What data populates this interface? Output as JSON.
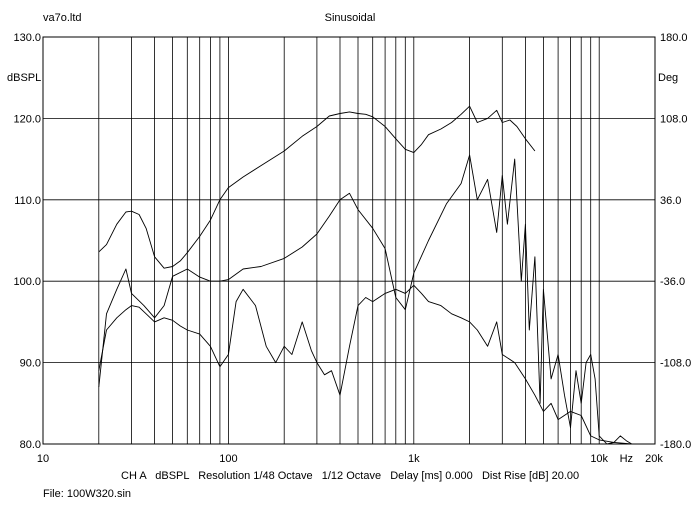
{
  "header": {
    "file_name_top": "va7o.ltd",
    "measurement_type": "Sinusoidal"
  },
  "footer": {
    "settings_line": "CH A   dBSPL   Resolution 1/48 Octave   1/12 Octave   Delay [ms] 0.000   Dist Rise [dB] 20.00",
    "file_line": "File: 100W320.sin"
  },
  "chart_data": {
    "type": "line",
    "x_scale": "log",
    "xlim": [
      10,
      20000
    ],
    "x_tick_labels": [
      {
        "value": 10,
        "label": "10"
      },
      {
        "value": 100,
        "label": "100"
      },
      {
        "value": 1000,
        "label": "1k"
      },
      {
        "value": 10000,
        "label": "10k"
      },
      {
        "value": 14000,
        "label": "Hz"
      },
      {
        "value": 20000,
        "label": "20k"
      }
    ],
    "x_gridlines": [
      20,
      30,
      40,
      50,
      60,
      70,
      80,
      90,
      100,
      200,
      300,
      400,
      500,
      600,
      700,
      800,
      900,
      1000,
      2000,
      3000,
      4000,
      5000,
      6000,
      7000,
      8000,
      9000,
      10000
    ],
    "ylabel": "dBSPL",
    "ylim": [
      80,
      130
    ],
    "y_ticks": [
      {
        "value": 80,
        "label": "80.0"
      },
      {
        "value": 90,
        "label": "90.0"
      },
      {
        "value": 100,
        "label": "100.0"
      },
      {
        "value": 110,
        "label": "110.0"
      },
      {
        "value": 120,
        "label": "120.0"
      },
      {
        "value": 130,
        "label": "130.0"
      }
    ],
    "y2label": "Deg",
    "y2lim": [
      -180,
      180
    ],
    "y2_ticks": [
      {
        "value": -180,
        "label": "-180.0"
      },
      {
        "value": -108,
        "label": "-108.0"
      },
      {
        "value": -36,
        "label": "-36.0"
      },
      {
        "value": 36,
        "label": "36.0"
      },
      {
        "value": 108,
        "label": "108.0"
      },
      {
        "value": 180,
        "label": "180.0"
      }
    ],
    "grid": true,
    "series": [
      {
        "x": [
          20,
          22,
          25,
          28,
          30,
          33,
          36,
          40,
          45,
          50,
          55,
          60,
          70,
          80,
          90,
          100,
          120,
          150,
          200,
          250,
          300,
          350,
          400,
          450,
          500,
          550,
          600,
          700,
          800,
          900,
          1000,
          1100,
          1200,
          1400,
          1600,
          1800,
          2000,
          2200,
          2500,
          2800,
          3000,
          3300,
          3600,
          4000,
          4500
        ],
        "y": [
          103.6,
          104.5,
          107,
          108.5,
          108.6,
          108.2,
          106.5,
          103,
          101.6,
          101.8,
          102.5,
          103.5,
          105.5,
          107.5,
          110,
          111.5,
          112.8,
          114.2,
          116,
          117.8,
          119,
          120.3,
          120.6,
          120.8,
          120.6,
          120.5,
          120.2,
          119,
          117.5,
          116.2,
          115.8,
          116.8,
          118,
          118.7,
          119.5,
          120.5,
          121.5,
          119.5,
          120,
          121,
          119.5,
          119.8,
          119,
          117.5,
          116
        ]
      },
      {
        "x": [
          20,
          22,
          25,
          28,
          30,
          35,
          40,
          45,
          50,
          60,
          70,
          80,
          90,
          100,
          120,
          150,
          200,
          250,
          300,
          350,
          400,
          450,
          500,
          600,
          700,
          800,
          900,
          1000,
          1200,
          1500,
          1800,
          2000,
          2200,
          2500,
          2800,
          3000,
          3200,
          3500,
          3800,
          4000,
          4200,
          4500,
          4800,
          5000,
          5500,
          6000,
          6500,
          7000,
          7500,
          8000,
          8500,
          9000,
          9500,
          10000,
          11000,
          12000,
          13000,
          14000,
          15000
        ],
        "y": [
          87,
          96,
          99,
          101.5,
          98.5,
          97,
          95.5,
          97,
          100.6,
          101.5,
          100.5,
          100,
          100,
          100.2,
          101.5,
          101.8,
          102.8,
          104.2,
          105.8,
          108,
          110,
          110.8,
          108.8,
          106.5,
          104,
          98,
          96.5,
          101,
          105,
          109.5,
          112,
          115.5,
          110,
          112.5,
          106,
          113,
          107,
          115,
          100,
          107,
          94,
          103,
          85,
          99,
          88,
          91,
          86,
          82,
          89,
          85,
          90,
          91,
          88,
          81,
          80,
          80.2,
          81,
          80.4,
          80
        ]
      },
      {
        "x": [
          20,
          22,
          25,
          28,
          30,
          33,
          36,
          40,
          45,
          50,
          55,
          60,
          70,
          80,
          90,
          100,
          110,
          120,
          140,
          160,
          180,
          200,
          220,
          250,
          280,
          300,
          330,
          360,
          400,
          450,
          500,
          550,
          600,
          700,
          800,
          900,
          1000,
          1100,
          1200,
          1400,
          1600,
          1800,
          2000,
          2200,
          2500,
          2800,
          3000,
          3500,
          4000,
          4500,
          5000,
          5500,
          6000,
          7000,
          8000,
          9000,
          10000,
          12000,
          15000
        ],
        "y": [
          89,
          94,
          95.5,
          96.5,
          97,
          96.8,
          96,
          95,
          95.5,
          95.2,
          94.5,
          94,
          93.5,
          92,
          89.5,
          91,
          97.5,
          99,
          97,
          92,
          90,
          92,
          91,
          95,
          91.5,
          90,
          88.5,
          89,
          86,
          92,
          97,
          98,
          97.5,
          98.5,
          99,
          98.5,
          99.5,
          98.5,
          97.5,
          97,
          96,
          95.5,
          95,
          94,
          92,
          95,
          91,
          90,
          88,
          86,
          84,
          85,
          83,
          84,
          83.5,
          81,
          80.5,
          80.2,
          80
        ]
      }
    ]
  }
}
